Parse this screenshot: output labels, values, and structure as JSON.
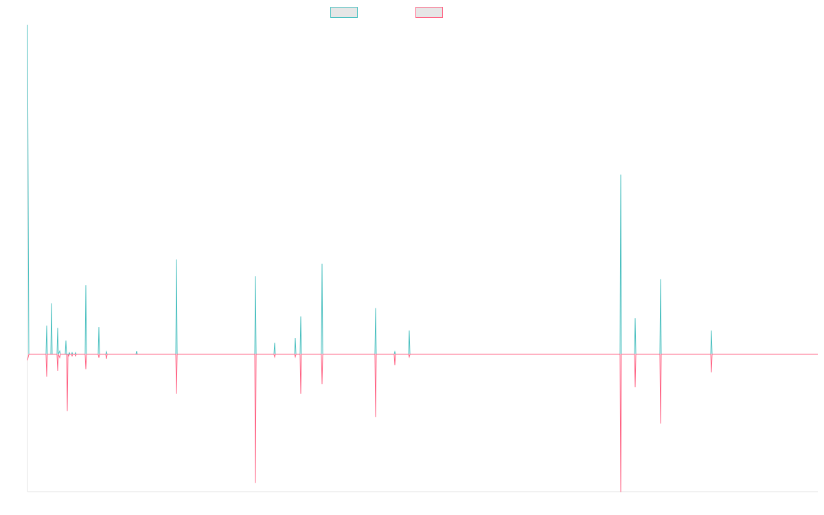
{
  "chart_data": {
    "type": "line",
    "title": "",
    "xlabel": "",
    "ylabel": "",
    "grid": false,
    "legend": {
      "position": "top-center",
      "entries": [
        "",
        ""
      ]
    },
    "ylim": [
      -0.418,
      1
    ],
    "series": [
      {
        "name": "",
        "color": "#4bc0c0",
        "fill": "#e6e6e6",
        "points": [
          [
            0,
            1
          ],
          [
            2,
            0
          ],
          [
            27,
            0
          ],
          [
            28,
            0.087
          ],
          [
            29,
            0
          ],
          [
            34,
            0
          ],
          [
            35,
            0.155
          ],
          [
            36,
            0
          ],
          [
            43,
            0
          ],
          [
            44,
            0.08
          ],
          [
            45,
            0
          ],
          [
            47,
            0.01
          ],
          [
            48,
            0
          ],
          [
            55,
            0
          ],
          [
            56,
            0.042
          ],
          [
            57,
            0
          ],
          [
            60,
            0
          ],
          [
            61,
            0.005
          ],
          [
            62,
            0
          ],
          [
            64,
            0
          ],
          [
            65,
            0.005
          ],
          [
            66,
            0
          ],
          [
            69,
            0
          ],
          [
            70,
            0.005
          ],
          [
            71,
            0
          ],
          [
            84,
            0
          ],
          [
            85,
            0.21
          ],
          [
            86,
            0
          ],
          [
            103,
            0
          ],
          [
            104,
            0.083
          ],
          [
            105,
            0
          ],
          [
            114,
            0
          ],
          [
            115,
            0.008
          ],
          [
            116,
            0
          ],
          [
            158,
            0
          ],
          [
            159,
            0.01
          ],
          [
            160,
            0
          ],
          [
            216,
            0
          ],
          [
            217,
            0.288
          ],
          [
            218,
            0
          ],
          [
            331,
            0
          ],
          [
            332,
            0.237
          ],
          [
            333,
            0
          ],
          [
            359,
            0
          ],
          [
            360,
            0.035
          ],
          [
            361,
            0
          ],
          [
            389,
            0
          ],
          [
            390,
            0.05
          ],
          [
            391,
            0
          ],
          [
            397,
            0
          ],
          [
            398,
            0.115
          ],
          [
            399,
            0
          ],
          [
            428,
            0
          ],
          [
            429,
            0.275
          ],
          [
            430,
            0
          ],
          [
            506,
            0
          ],
          [
            507,
            0.14
          ],
          [
            508,
            0
          ],
          [
            534,
            0
          ],
          [
            535,
            0.008
          ],
          [
            536,
            0
          ],
          [
            555,
            0
          ],
          [
            556,
            0.072
          ],
          [
            557,
            0
          ],
          [
            863,
            0
          ],
          [
            864,
            0.545
          ],
          [
            865,
            0
          ],
          [
            884,
            0
          ],
          [
            885,
            0.11
          ],
          [
            886,
            0
          ],
          [
            921,
            0
          ],
          [
            922,
            0.228
          ],
          [
            923,
            0
          ],
          [
            995,
            0
          ],
          [
            996,
            0.072
          ],
          [
            997,
            0
          ],
          [
            1151,
            0
          ]
        ]
      },
      {
        "name": "",
        "color": "#ff6384",
        "fill": "#e6e6e6",
        "points": [
          [
            0,
            -0.018
          ],
          [
            2,
            0
          ],
          [
            27,
            0
          ],
          [
            28,
            -0.068
          ],
          [
            29,
            0
          ],
          [
            43,
            0
          ],
          [
            44,
            -0.05
          ],
          [
            45,
            0
          ],
          [
            47,
            -0.01
          ],
          [
            48,
            0
          ],
          [
            57,
            0
          ],
          [
            58,
            -0.172
          ],
          [
            59,
            0
          ],
          [
            60,
            -0.005
          ],
          [
            61,
            0
          ],
          [
            64,
            0
          ],
          [
            65,
            -0.005
          ],
          [
            66,
            0
          ],
          [
            69,
            0
          ],
          [
            70,
            -0.005
          ],
          [
            71,
            0
          ],
          [
            84,
            0
          ],
          [
            85,
            -0.045
          ],
          [
            86,
            0
          ],
          [
            103,
            0
          ],
          [
            104,
            -0.01
          ],
          [
            105,
            0
          ],
          [
            114,
            0
          ],
          [
            115,
            -0.014
          ],
          [
            116,
            0
          ],
          [
            216,
            0
          ],
          [
            217,
            -0.12
          ],
          [
            218,
            0
          ],
          [
            331,
            0
          ],
          [
            332,
            -0.39
          ],
          [
            333,
            0
          ],
          [
            359,
            0
          ],
          [
            360,
            -0.008
          ],
          [
            361,
            0
          ],
          [
            389,
            0
          ],
          [
            390,
            -0.008
          ],
          [
            391,
            0
          ],
          [
            397,
            0
          ],
          [
            398,
            -0.12
          ],
          [
            399,
            0
          ],
          [
            428,
            0
          ],
          [
            429,
            -0.09
          ],
          [
            430,
            0
          ],
          [
            506,
            0
          ],
          [
            507,
            -0.19
          ],
          [
            508,
            0
          ],
          [
            534,
            0
          ],
          [
            535,
            -0.033
          ],
          [
            536,
            0
          ],
          [
            555,
            0
          ],
          [
            556,
            -0.008
          ],
          [
            557,
            0
          ],
          [
            863,
            0
          ],
          [
            864,
            -0.418
          ],
          [
            865,
            0
          ],
          [
            884,
            0
          ],
          [
            885,
            -0.1
          ],
          [
            886,
            0
          ],
          [
            921,
            0
          ],
          [
            922,
            -0.21
          ],
          [
            923,
            0
          ],
          [
            995,
            0
          ],
          [
            996,
            -0.055
          ],
          [
            997,
            0
          ],
          [
            1151,
            0
          ]
        ]
      }
    ]
  }
}
